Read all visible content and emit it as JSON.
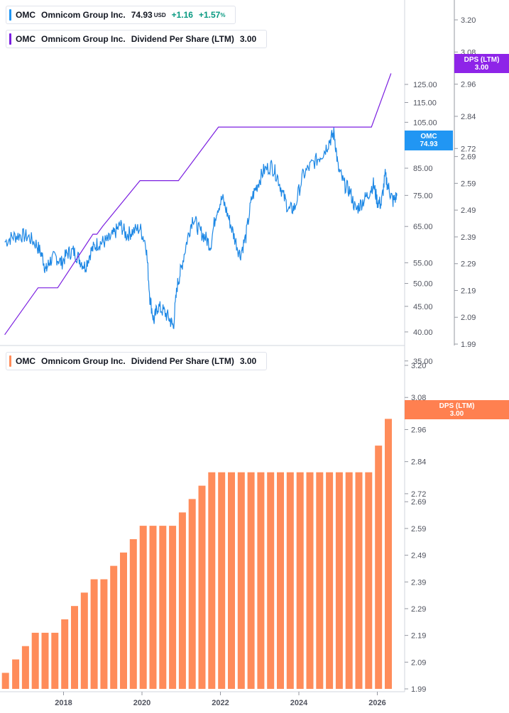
{
  "legends": {
    "price": {
      "symbol": "OMC",
      "name": "Omnicom Group Inc.",
      "value": "74.93",
      "unit": "USD",
      "change": "+1.16",
      "change_pct": "+1.57",
      "pct_unit": "%"
    },
    "dps_top": {
      "symbol": "OMC",
      "name": "Omnicom Group Inc.",
      "metric": "Dividend Per Share (LTM)",
      "value": "3.00"
    },
    "dps_bottom": {
      "symbol": "OMC",
      "name": "Omnicom Group Inc.",
      "metric": "Dividend Per Share (LTM)",
      "value": "3.00"
    }
  },
  "labels": {
    "price": {
      "line1": "OMC",
      "line2": "74.93"
    },
    "dps_top": {
      "line1": "DPS (LTM)",
      "line2": "3.00"
    },
    "dps_bottom": {
      "line1": "DPS (LTM)",
      "line2": "3.00"
    }
  },
  "colors": {
    "price_line": "#1e88e5",
    "price_label": "#2196f3",
    "dps_line": "#7b1fe0",
    "dps_label": "#8e24e8",
    "bars": "#ff8c5a",
    "bar_label": "#ff8050",
    "axis_text": "#50535e",
    "grid": "#d1d4dc"
  },
  "chart_data": [
    {
      "type": "line",
      "title": "OMC Omnicom Group Inc. price",
      "series": [
        {
          "name": "OMC",
          "values": [
            [
              2016.5,
              60.5
            ],
            [
              2016.7,
              62.0
            ],
            [
              2016.9,
              62.5
            ],
            [
              2017.1,
              62.0
            ],
            [
              2017.3,
              60.0
            ],
            [
              2017.45,
              57.0
            ],
            [
              2017.55,
              53.0
            ],
            [
              2017.65,
              55.5
            ],
            [
              2017.8,
              56.5
            ],
            [
              2017.95,
              55.0
            ],
            [
              2018.1,
              57.5
            ],
            [
              2018.25,
              58.0
            ],
            [
              2018.4,
              56.0
            ],
            [
              2018.55,
              54.0
            ],
            [
              2018.7,
              58.0
            ],
            [
              2018.85,
              60.0
            ],
            [
              2019.0,
              60.5
            ],
            [
              2019.15,
              61.0
            ],
            [
              2019.3,
              63.0
            ],
            [
              2019.45,
              65.5
            ],
            [
              2019.6,
              62.5
            ],
            [
              2019.75,
              63.5
            ],
            [
              2019.95,
              64.5
            ],
            [
              2020.1,
              60.0
            ],
            [
              2020.2,
              47.0
            ],
            [
              2020.3,
              42.0
            ],
            [
              2020.4,
              45.0
            ],
            [
              2020.55,
              44.0
            ],
            [
              2020.7,
              42.5
            ],
            [
              2020.8,
              41.0
            ],
            [
              2020.9,
              49.5
            ],
            [
              2021.0,
              53.5
            ],
            [
              2021.15,
              61.0
            ],
            [
              2021.3,
              68.0
            ],
            [
              2021.45,
              64.0
            ],
            [
              2021.6,
              62.0
            ],
            [
              2021.75,
              59.5
            ],
            [
              2021.9,
              70.0
            ],
            [
              2022.05,
              74.0
            ],
            [
              2022.2,
              68.0
            ],
            [
              2022.35,
              62.0
            ],
            [
              2022.5,
              57.0
            ],
            [
              2022.65,
              62.0
            ],
            [
              2022.8,
              74.0
            ],
            [
              2022.95,
              79.0
            ],
            [
              2023.1,
              84.0
            ],
            [
              2023.3,
              86.0
            ],
            [
              2023.45,
              82.0
            ],
            [
              2023.6,
              75.0
            ],
            [
              2023.75,
              70.0
            ],
            [
              2023.9,
              71.0
            ],
            [
              2024.1,
              82.0
            ],
            [
              2024.3,
              86.0
            ],
            [
              2024.5,
              89.0
            ],
            [
              2024.65,
              92.0
            ],
            [
              2024.8,
              97.0
            ],
            [
              2024.9,
              100.0
            ],
            [
              2025.0,
              85.0
            ],
            [
              2025.15,
              79.0
            ],
            [
              2025.3,
              76.5
            ],
            [
              2025.45,
              70.0
            ],
            [
              2025.6,
              72.5
            ],
            [
              2025.75,
              75.0
            ],
            [
              2025.9,
              79.0
            ],
            [
              2026.0,
              73.0
            ],
            [
              2026.1,
              72.0
            ],
            [
              2026.2,
              82.0
            ],
            [
              2026.3,
              77.0
            ],
            [
              2026.4,
              73.0
            ],
            [
              2026.5,
              74.93
            ]
          ]
        }
      ],
      "ylim": [
        33,
        130
      ],
      "ticks": [
        35.0,
        40.0,
        45.0,
        50.0,
        55.0,
        65.0,
        75.0,
        85.0,
        95.0,
        105.0,
        115.0,
        125.0
      ]
    },
    {
      "type": "line",
      "title": "Dividend Per Share (LTM) - top pane",
      "series": [
        {
          "name": "DPS (LTM)",
          "values": [
            [
              2016.5,
              2.025
            ],
            [
              2017.35,
              2.2
            ],
            [
              2017.85,
              2.2
            ],
            [
              2018.75,
              2.4
            ],
            [
              2018.85,
              2.4
            ],
            [
              2019.0,
              2.43
            ],
            [
              2019.95,
              2.6
            ],
            [
              2020.93,
              2.6
            ],
            [
              2021.95,
              2.8
            ],
            [
              2025.85,
              2.8
            ],
            [
              2026.35,
              3.0
            ]
          ]
        }
      ],
      "ticks": [
        1.99,
        2.09,
        2.19,
        2.29,
        2.39,
        2.49,
        2.59,
        2.69,
        2.72,
        2.84,
        2.96,
        3.08,
        3.2
      ]
    },
    {
      "type": "bar",
      "title": "Dividend Per Share (LTM) - bottom pane",
      "series": [
        {
          "name": "DPS (LTM)",
          "values": [
            [
              2016.52,
              2.05
            ],
            [
              2016.78,
              2.1
            ],
            [
              2017.03,
              2.15
            ],
            [
              2017.28,
              2.2
            ],
            [
              2017.53,
              2.2
            ],
            [
              2017.78,
              2.2
            ],
            [
              2018.03,
              2.25
            ],
            [
              2018.28,
              2.3
            ],
            [
              2018.53,
              2.35
            ],
            [
              2018.78,
              2.4
            ],
            [
              2019.03,
              2.4
            ],
            [
              2019.28,
              2.45
            ],
            [
              2019.53,
              2.5
            ],
            [
              2019.78,
              2.55
            ],
            [
              2020.03,
              2.6
            ],
            [
              2020.28,
              2.6
            ],
            [
              2020.53,
              2.6
            ],
            [
              2020.78,
              2.6
            ],
            [
              2021.03,
              2.65
            ],
            [
              2021.28,
              2.7
            ],
            [
              2021.53,
              2.75
            ],
            [
              2021.78,
              2.8
            ],
            [
              2022.03,
              2.8
            ],
            [
              2022.28,
              2.8
            ],
            [
              2022.53,
              2.8
            ],
            [
              2022.78,
              2.8
            ],
            [
              2023.03,
              2.8
            ],
            [
              2023.28,
              2.8
            ],
            [
              2023.53,
              2.8
            ],
            [
              2023.78,
              2.8
            ],
            [
              2024.03,
              2.8
            ],
            [
              2024.28,
              2.8
            ],
            [
              2024.53,
              2.8
            ],
            [
              2024.78,
              2.8
            ],
            [
              2025.03,
              2.8
            ],
            [
              2025.28,
              2.8
            ],
            [
              2025.53,
              2.8
            ],
            [
              2025.78,
              2.8
            ],
            [
              2026.03,
              2.9
            ],
            [
              2026.28,
              3.0
            ]
          ]
        }
      ],
      "ylim": [
        1.99,
        3.2
      ],
      "ticks": [
        1.99,
        2.09,
        2.19,
        2.29,
        2.39,
        2.49,
        2.59,
        2.69,
        2.72,
        2.84,
        2.96,
        3.08,
        3.2
      ],
      "x_ticks": [
        "2018",
        "2020",
        "2022",
        "2024",
        "2026"
      ]
    }
  ]
}
